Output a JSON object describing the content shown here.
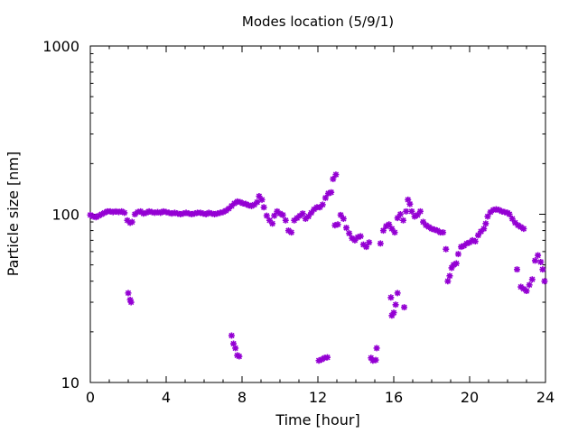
{
  "chart_data": {
    "type": "scatter",
    "title": "Modes location (5/9/1)",
    "xlabel": "Time [hour]",
    "ylabel": "Particle size [nm]",
    "xlim": [
      0,
      24
    ],
    "ylim": [
      10,
      1000
    ],
    "yscale": "log",
    "xticks": [
      0,
      4,
      8,
      12,
      16,
      20,
      24
    ],
    "xtick_labels": [
      "0",
      "4",
      "8",
      "12",
      "16",
      "20",
      "24"
    ],
    "yticks": [
      10,
      100,
      1000
    ],
    "ytick_labels": [
      "10",
      "100",
      "1000"
    ],
    "grid": false,
    "legend": "none",
    "marker_color": "#9400D3",
    "marker": "star",
    "series": [
      {
        "points": [
          [
            0.0,
            99
          ],
          [
            0.15,
            97
          ],
          [
            0.3,
            96
          ],
          [
            0.45,
            98
          ],
          [
            0.6,
            100
          ],
          [
            0.75,
            102
          ],
          [
            0.9,
            104
          ],
          [
            1.05,
            104
          ],
          [
            1.2,
            103
          ],
          [
            1.35,
            104
          ],
          [
            1.5,
            103
          ],
          [
            1.65,
            104
          ],
          [
            1.8,
            102
          ],
          [
            1.95,
            92
          ],
          [
            2.1,
            89
          ],
          [
            2.2,
            90
          ],
          [
            2.35,
            100
          ],
          [
            2.5,
            103
          ],
          [
            2.65,
            104
          ],
          [
            2.8,
            101
          ],
          [
            2.95,
            102
          ],
          [
            3.1,
            104
          ],
          [
            3.25,
            103
          ],
          [
            3.4,
            102
          ],
          [
            3.55,
            103
          ],
          [
            3.7,
            102
          ],
          [
            3.85,
            104
          ],
          [
            4.0,
            103
          ],
          [
            4.15,
            102
          ],
          [
            4.3,
            101
          ],
          [
            4.45,
            102
          ],
          [
            4.6,
            101
          ],
          [
            4.75,
            100
          ],
          [
            4.9,
            101
          ],
          [
            5.05,
            102
          ],
          [
            5.2,
            101
          ],
          [
            5.35,
            100
          ],
          [
            5.5,
            101
          ],
          [
            5.65,
            102
          ],
          [
            5.8,
            102
          ],
          [
            5.95,
            101
          ],
          [
            6.1,
            100
          ],
          [
            6.25,
            102
          ],
          [
            6.4,
            101
          ],
          [
            6.55,
            100
          ],
          [
            6.7,
            101
          ],
          [
            6.85,
            102
          ],
          [
            7.0,
            103
          ],
          [
            7.15,
            105
          ],
          [
            7.3,
            108
          ],
          [
            7.45,
            112
          ],
          [
            7.6,
            116
          ],
          [
            7.75,
            119
          ],
          [
            7.9,
            118
          ],
          [
            8.05,
            116
          ],
          [
            8.2,
            115
          ],
          [
            8.35,
            113
          ],
          [
            8.5,
            112
          ],
          [
            8.65,
            114
          ],
          [
            8.8,
            118
          ],
          [
            8.9,
            128
          ],
          [
            9.05,
            122
          ],
          [
            9.15,
            110
          ],
          [
            9.3,
            98
          ],
          [
            9.45,
            92
          ],
          [
            9.6,
            88
          ],
          [
            9.7,
            98
          ],
          [
            9.85,
            104
          ],
          [
            10.0,
            101
          ],
          [
            10.15,
            99
          ],
          [
            10.3,
            92
          ],
          [
            10.45,
            80
          ],
          [
            10.6,
            78
          ],
          [
            10.75,
            92
          ],
          [
            10.9,
            95
          ],
          [
            11.05,
            98
          ],
          [
            11.2,
            101
          ],
          [
            11.35,
            94
          ],
          [
            11.5,
            97
          ],
          [
            11.65,
            102
          ],
          [
            11.8,
            107
          ],
          [
            11.95,
            110
          ],
          [
            12.1,
            110
          ],
          [
            12.25,
            114
          ],
          [
            12.4,
            125
          ],
          [
            12.55,
            133
          ],
          [
            12.7,
            135
          ],
          [
            12.8,
            162
          ],
          [
            12.95,
            172
          ],
          [
            12.9,
            86
          ],
          [
            13.05,
            87
          ],
          [
            13.2,
            99
          ],
          [
            13.35,
            94
          ],
          [
            13.5,
            83
          ],
          [
            13.65,
            77
          ],
          [
            13.8,
            72
          ],
          [
            13.95,
            70
          ],
          [
            14.1,
            73
          ],
          [
            14.25,
            74
          ],
          [
            14.4,
            66
          ],
          [
            14.55,
            64
          ],
          [
            14.7,
            68
          ],
          [
            15.3,
            67
          ],
          [
            15.45,
            80
          ],
          [
            15.6,
            85
          ],
          [
            15.75,
            87
          ],
          [
            15.9,
            82
          ],
          [
            16.05,
            78
          ],
          [
            16.2,
            95
          ],
          [
            16.35,
            100
          ],
          [
            16.5,
            92
          ],
          [
            16.65,
            104
          ],
          [
            16.75,
            122
          ],
          [
            16.85,
            115
          ],
          [
            16.95,
            104
          ],
          [
            17.1,
            97
          ],
          [
            17.25,
            99
          ],
          [
            17.4,
            104
          ],
          [
            17.55,
            90
          ],
          [
            17.7,
            86
          ],
          [
            17.85,
            84
          ],
          [
            18.0,
            82
          ],
          [
            18.15,
            81
          ],
          [
            18.3,
            80
          ],
          [
            18.45,
            78
          ],
          [
            18.6,
            78
          ],
          [
            18.75,
            62
          ],
          [
            18.85,
            40
          ],
          [
            18.95,
            43
          ],
          [
            19.05,
            48
          ],
          [
            19.15,
            50
          ],
          [
            19.3,
            51
          ],
          [
            19.4,
            58
          ],
          [
            19.55,
            64
          ],
          [
            19.7,
            65
          ],
          [
            19.85,
            67
          ],
          [
            20.0,
            68
          ],
          [
            20.15,
            70
          ],
          [
            20.3,
            69
          ],
          [
            20.45,
            75
          ],
          [
            20.6,
            79
          ],
          [
            20.75,
            82
          ],
          [
            20.85,
            88
          ],
          [
            20.95,
            97
          ],
          [
            21.1,
            103
          ],
          [
            21.25,
            106
          ],
          [
            21.4,
            107
          ],
          [
            21.55,
            106
          ],
          [
            21.7,
            104
          ],
          [
            21.85,
            103
          ],
          [
            22.0,
            102
          ],
          [
            22.1,
            100
          ],
          [
            22.25,
            94
          ],
          [
            22.4,
            89
          ],
          [
            22.55,
            86
          ],
          [
            22.7,
            84
          ],
          [
            22.85,
            82
          ],
          [
            22.5,
            47
          ],
          [
            22.7,
            37
          ],
          [
            22.85,
            36
          ],
          [
            23.0,
            35
          ],
          [
            23.15,
            38
          ],
          [
            23.3,
            41
          ],
          [
            23.45,
            53
          ],
          [
            23.6,
            57
          ],
          [
            23.75,
            52
          ],
          [
            23.85,
            47
          ],
          [
            23.95,
            40
          ],
          [
            2.0,
            34
          ],
          [
            2.1,
            31
          ],
          [
            2.15,
            30
          ],
          [
            7.45,
            19
          ],
          [
            7.55,
            17
          ],
          [
            7.65,
            16
          ],
          [
            7.75,
            14.5
          ],
          [
            7.85,
            14.3
          ],
          [
            12.05,
            13.5
          ],
          [
            12.2,
            13.7
          ],
          [
            12.35,
            14
          ],
          [
            12.5,
            14.1
          ],
          [
            14.8,
            14
          ],
          [
            14.9,
            13.5
          ],
          [
            15.05,
            13.6
          ],
          [
            15.1,
            16
          ],
          [
            15.85,
            32
          ],
          [
            15.9,
            25
          ],
          [
            16.0,
            26
          ],
          [
            16.2,
            34
          ],
          [
            16.1,
            29
          ],
          [
            16.55,
            28
          ]
        ]
      }
    ]
  }
}
